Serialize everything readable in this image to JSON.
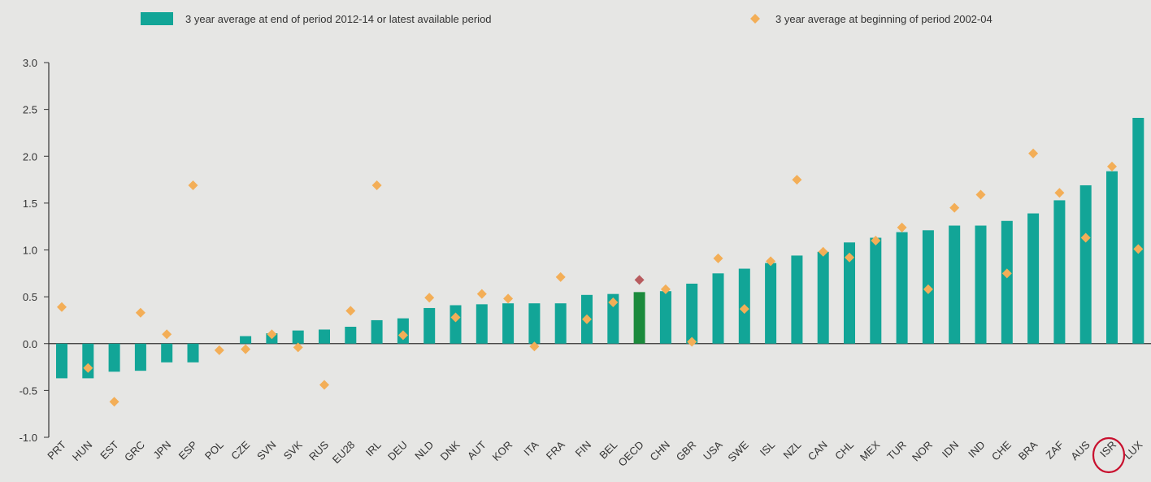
{
  "chart_data": {
    "type": "bar",
    "categories": [
      "PRT",
      "HUN",
      "EST",
      "GRC",
      "JPN",
      "ESP",
      "POL",
      "CZE",
      "SVN",
      "SVK",
      "RUS",
      "EU28",
      "IRL",
      "DEU",
      "NLD",
      "DNK",
      "AUT",
      "KOR",
      "ITA",
      "FRA",
      "FIN",
      "BEL",
      "OECD",
      "CHN",
      "GBR",
      "USA",
      "SWE",
      "ISL",
      "NZL",
      "CAN",
      "CHL",
      "MEX",
      "TUR",
      "NOR",
      "IDN",
      "IND",
      "CHE",
      "BRA",
      "ZAF",
      "AUS",
      "ISR",
      "LUX"
    ],
    "series": [
      {
        "name": "3 year average at end of period 2012-14 or latest available period",
        "mark": "bar",
        "color": "#12a597",
        "values": [
          -0.37,
          -0.37,
          -0.3,
          -0.29,
          -0.2,
          -0.2,
          0.0,
          0.08,
          0.11,
          0.14,
          0.15,
          0.18,
          0.25,
          0.27,
          0.38,
          0.41,
          0.42,
          0.43,
          0.43,
          0.43,
          0.52,
          0.53,
          0.55,
          0.56,
          0.64,
          0.75,
          0.8,
          0.86,
          0.94,
          0.98,
          1.08,
          1.13,
          1.19,
          1.21,
          1.26,
          1.26,
          1.31,
          1.39,
          1.53,
          1.69,
          1.84,
          2.41
        ]
      },
      {
        "name": "3 year average at beginning of period 2002-04",
        "mark": "diamond",
        "color": "#f3ae57",
        "values": [
          0.39,
          -0.26,
          -0.62,
          0.33,
          0.1,
          1.69,
          -0.07,
          -0.06,
          0.1,
          -0.04,
          -0.44,
          0.35,
          1.69,
          0.09,
          0.49,
          0.28,
          0.53,
          0.48,
          -0.03,
          0.71,
          0.26,
          0.44,
          0.68,
          0.58,
          0.02,
          0.91,
          0.37,
          0.88,
          1.75,
          0.98,
          0.92,
          1.1,
          1.24,
          0.58,
          1.45,
          1.59,
          0.75,
          2.03,
          1.61,
          1.13,
          1.89,
          1.01
        ]
      }
    ],
    "highlight": {
      "category": "OECD",
      "bar_color": "#1b8a3c",
      "marker_color": "#b85c5f"
    },
    "circled_category": "ISR",
    "circle_color": "#c8102e",
    "ylim": [
      -1.0,
      3.0
    ],
    "yticks": [
      "3.0",
      "2.5",
      "2.0",
      "1.5",
      "1.0",
      "0.5",
      "0.0",
      "-0.5",
      "-1.0"
    ],
    "title": "",
    "xlabel": "",
    "ylabel": "",
    "legend_position": "top",
    "grid": false
  }
}
